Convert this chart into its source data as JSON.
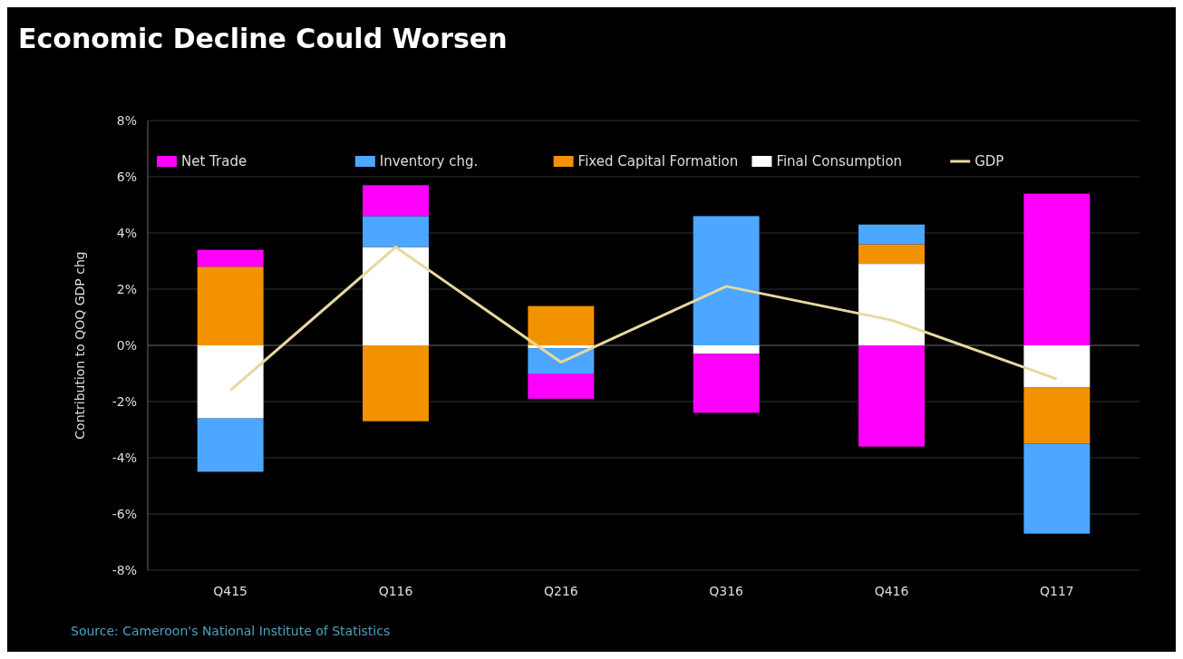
{
  "chart_data": {
    "type": "bar",
    "title": "Economic Decline Could Worsen",
    "ylabel": "Contribution to QOQ GDP chg",
    "stacked": true,
    "categories": [
      "Q415",
      "Q116",
      "Q216",
      "Q316",
      "Q416",
      "Q117"
    ],
    "series": [
      {
        "name": "Final Consumption",
        "color": "#ffffff",
        "values": [
          -2.6,
          3.5,
          -0.1,
          -0.3,
          2.9,
          -1.5
        ]
      },
      {
        "name": "Fixed Capital Formation",
        "color": "#f39200",
        "values": [
          2.8,
          -2.7,
          1.4,
          null,
          0.7,
          -2.0
        ]
      },
      {
        "name": "Inventory chg.",
        "color": "#4da6ff",
        "values": [
          -1.9,
          1.1,
          -0.9,
          4.6,
          0.7,
          -3.2
        ]
      },
      {
        "name": "Net Trade",
        "color": "#ff00ff",
        "values": [
          0.6,
          1.1,
          -0.9,
          -2.1,
          -3.6,
          5.4
        ]
      },
      {
        "name": "GDP",
        "type": "line",
        "color": "#e8d8a0",
        "values": [
          -1.6,
          3.5,
          -0.6,
          2.1,
          0.9,
          -1.2
        ]
      }
    ],
    "ylim": [
      -8,
      8
    ],
    "yticks": [
      {
        "value": -8,
        "label": "-8%"
      },
      {
        "value": -6,
        "label": "-6%"
      },
      {
        "value": -4,
        "label": "-4%"
      },
      {
        "value": -2,
        "label": "-2%"
      },
      {
        "value": 0,
        "label": "0%"
      },
      {
        "value": 2,
        "label": "2%"
      },
      {
        "value": 4,
        "label": "4%"
      },
      {
        "value": 6,
        "label": "6%"
      },
      {
        "value": 8,
        "label": "8%"
      }
    ],
    "grid": "y",
    "legend": "top",
    "annotations": [
      "Source: Cameroon's National Institute of Statistics"
    ]
  }
}
